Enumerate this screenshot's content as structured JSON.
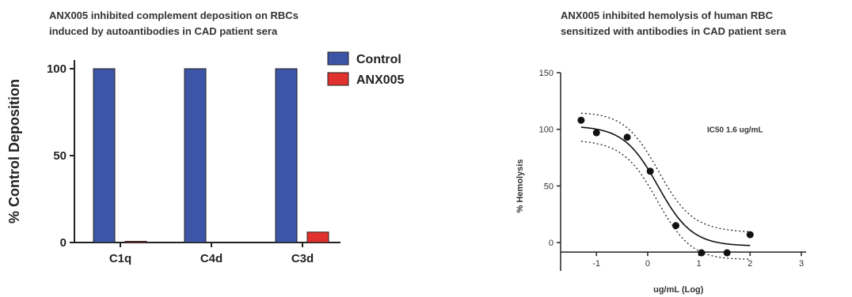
{
  "chart_data": [
    {
      "type": "bar",
      "title": "ANX005 inhibited complement deposition on RBCs induced by autoantibodies in CAD patient sera",
      "title_lines": [
        "ANX005 inhibited complement deposition on RBCs",
        "induced by autoantibodies in CAD patient sera"
      ],
      "ylabel": "% Control Deposition",
      "xlabel": "",
      "ylim": [
        0,
        105
      ],
      "yticks": [
        0,
        50,
        100
      ],
      "categories": [
        "C1q",
        "C4d",
        "C3d"
      ],
      "series": [
        {
          "name": "Control",
          "values": [
            100,
            100,
            100
          ],
          "color": "#3d55a6"
        },
        {
          "name": "ANX005",
          "values": [
            0.5,
            0,
            6
          ],
          "color": "#e0312f"
        }
      ],
      "legend": "top-right",
      "grid": false
    },
    {
      "type": "scatter",
      "title": "ANX005 inhibited hemolysis of human RBC sensitized with antibodies in CAD patient sera",
      "title_lines": [
        "ANX005 inhibited hemolysis of human RBC",
        "sensitized with antibodies in CAD patient sera"
      ],
      "xlabel": "ug/mL (Log)",
      "ylabel": "% Hemolysis",
      "xlim": [
        -1.7,
        3
      ],
      "ylim": [
        -25,
        150
      ],
      "xticks": [
        -1,
        0,
        1,
        2,
        3
      ],
      "yticks": [
        0,
        50,
        100,
        150
      ],
      "points": [
        {
          "x": -1.3,
          "y": 108
        },
        {
          "x": -1.0,
          "y": 97
        },
        {
          "x": -0.4,
          "y": 93
        },
        {
          "x": 0.05,
          "y": 63
        },
        {
          "x": 0.55,
          "y": 15
        },
        {
          "x": 1.05,
          "y": -9
        },
        {
          "x": 1.55,
          "y": -9
        },
        {
          "x": 2.0,
          "y": 7
        }
      ],
      "fit": {
        "model": "four-parameter logistic",
        "top": 103,
        "bottom": -3,
        "log_ic50": 0.2,
        "hill": 1.3,
        "ci_band": 14
      },
      "annotation": "IC50 1.6 ug/mL",
      "grid": false
    }
  ]
}
